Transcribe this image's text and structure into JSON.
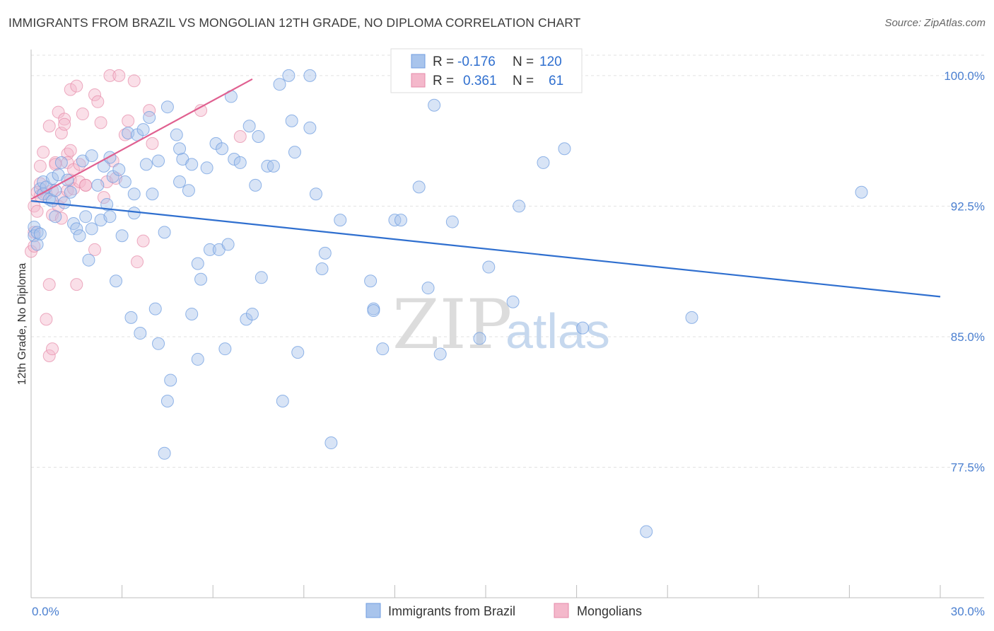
{
  "header": {
    "title": "IMMIGRANTS FROM BRAZIL VS MONGOLIAN 12TH GRADE, NO DIPLOMA CORRELATION CHART",
    "source": "Source: ZipAtlas.com"
  },
  "watermark": {
    "zip": "ZIP",
    "atlas": "atlas"
  },
  "legend_top": {
    "rows": [
      {
        "r_label": "R =",
        "r_value": "-0.176",
        "n_label": "N =",
        "n_value": "120",
        "color": "#a8c4ec"
      },
      {
        "r_label": "R =",
        "r_value": "0.361",
        "n_label": "N =",
        "n_value": "61",
        "color": "#f4b8cb"
      }
    ]
  },
  "legend_bottom": {
    "items": [
      {
        "label": "Immigrants from Brazil",
        "color": "#a8c4ec"
      },
      {
        "label": "Mongolians",
        "color": "#f4b8cb"
      }
    ]
  },
  "chart_data": {
    "type": "scatter",
    "title": "IMMIGRANTS FROM BRAZIL VS MONGOLIAN 12TH GRADE, NO DIPLOMA CORRELATION CHART",
    "xlabel": "",
    "ylabel": "12th Grade, No Diploma",
    "xlim": [
      0,
      30
    ],
    "ylim": [
      70,
      101.5
    ],
    "x_tick_labels": [
      "0.0%",
      "30.0%"
    ],
    "y_tick_labels": [
      "100.0%",
      "92.5%",
      "85.0%",
      "77.5%"
    ],
    "y_ticks": [
      100,
      92.5,
      85,
      77.5
    ],
    "grid": true,
    "legend_position": "top-center",
    "colors": {
      "brazil": "#6f9de0",
      "brazil_fill": "#a8c4ec",
      "mongolians": "#e58aa8",
      "mongolians_fill": "#f4b8cb",
      "brazil_line": "#2f6fcf",
      "mongolians_line": "#e06090"
    },
    "series": [
      {
        "name": "Immigrants from Brazil",
        "trend": {
          "x": [
            0,
            30
          ],
          "y": [
            92.8,
            87.3
          ]
        },
        "points": [
          [
            0.1,
            91.3
          ],
          [
            0.1,
            90.8
          ],
          [
            0.2,
            90.3
          ],
          [
            0.3,
            93.5
          ],
          [
            0.4,
            93.9
          ],
          [
            0.4,
            93.2
          ],
          [
            0.5,
            93.6
          ],
          [
            0.6,
            92.9
          ],
          [
            0.7,
            92.8
          ],
          [
            0.7,
            94.1
          ],
          [
            0.8,
            91.9
          ],
          [
            0.8,
            93.4
          ],
          [
            0.9,
            94.3
          ],
          [
            1.0,
            95.0
          ],
          [
            1.1,
            92.7
          ],
          [
            1.2,
            94.0
          ],
          [
            1.3,
            93.3
          ],
          [
            1.4,
            91.5
          ],
          [
            1.5,
            91.2
          ],
          [
            1.6,
            90.8
          ],
          [
            1.7,
            95.1
          ],
          [
            1.8,
            91.9
          ],
          [
            1.9,
            89.4
          ],
          [
            2.0,
            91.2
          ],
          [
            2.0,
            95.4
          ],
          [
            2.2,
            93.7
          ],
          [
            2.3,
            91.7
          ],
          [
            2.4,
            94.8
          ],
          [
            2.5,
            92.6
          ],
          [
            2.6,
            91.9
          ],
          [
            2.6,
            95.3
          ],
          [
            2.7,
            94.2
          ],
          [
            2.8,
            88.2
          ],
          [
            2.9,
            94.6
          ],
          [
            3.0,
            90.8
          ],
          [
            3.1,
            93.9
          ],
          [
            3.2,
            96.7
          ],
          [
            3.3,
            86.1
          ],
          [
            3.4,
            92.1
          ],
          [
            3.4,
            93.2
          ],
          [
            3.5,
            96.6
          ],
          [
            3.6,
            85.2
          ],
          [
            3.7,
            96.9
          ],
          [
            3.8,
            94.9
          ],
          [
            3.9,
            97.6
          ],
          [
            4.0,
            93.2
          ],
          [
            4.1,
            86.6
          ],
          [
            4.2,
            95.1
          ],
          [
            4.2,
            84.6
          ],
          [
            4.4,
            91.0
          ],
          [
            4.5,
            98.2
          ],
          [
            4.6,
            82.5
          ],
          [
            4.5,
            81.3
          ],
          [
            4.4,
            78.3
          ],
          [
            4.8,
            96.6
          ],
          [
            4.9,
            95.8
          ],
          [
            4.9,
            93.9
          ],
          [
            5.0,
            95.2
          ],
          [
            5.2,
            93.4
          ],
          [
            5.3,
            94.9
          ],
          [
            5.3,
            86.3
          ],
          [
            5.5,
            89.2
          ],
          [
            5.5,
            83.7
          ],
          [
            5.6,
            88.3
          ],
          [
            5.8,
            94.7
          ],
          [
            5.9,
            90.0
          ],
          [
            6.1,
            96.1
          ],
          [
            6.3,
            95.8
          ],
          [
            6.2,
            90.0
          ],
          [
            6.4,
            84.3
          ],
          [
            6.5,
            90.3
          ],
          [
            6.6,
            98.8
          ],
          [
            6.7,
            95.2
          ],
          [
            6.9,
            95.0
          ],
          [
            7.1,
            86.0
          ],
          [
            7.2,
            97.1
          ],
          [
            7.3,
            86.3
          ],
          [
            7.4,
            93.7
          ],
          [
            7.5,
            96.5
          ],
          [
            7.6,
            88.4
          ],
          [
            7.8,
            94.8
          ],
          [
            8.0,
            94.8
          ],
          [
            8.2,
            99.5
          ],
          [
            8.3,
            81.3
          ],
          [
            8.5,
            100.0
          ],
          [
            8.6,
            97.4
          ],
          [
            8.7,
            95.6
          ],
          [
            8.8,
            84.1
          ],
          [
            9.2,
            97.0
          ],
          [
            9.2,
            100.0
          ],
          [
            9.4,
            93.2
          ],
          [
            9.6,
            88.9
          ],
          [
            9.7,
            89.8
          ],
          [
            9.9,
            78.9
          ],
          [
            10.2,
            91.7
          ],
          [
            11.2,
            88.2
          ],
          [
            11.3,
            86.6
          ],
          [
            11.3,
            86.5
          ],
          [
            11.6,
            84.3
          ],
          [
            12.0,
            91.7
          ],
          [
            12.2,
            91.7
          ],
          [
            12.8,
            93.6
          ],
          [
            13.1,
            87.8
          ],
          [
            13.3,
            98.3
          ],
          [
            13.4,
            100.0
          ],
          [
            13.5,
            84.0
          ],
          [
            13.9,
            91.6
          ],
          [
            14.8,
            84.9
          ],
          [
            15.1,
            89.0
          ],
          [
            15.9,
            87.0
          ],
          [
            16.1,
            92.5
          ],
          [
            16.9,
            95.0
          ],
          [
            17.6,
            95.8
          ],
          [
            17.9,
            100.0
          ],
          [
            18.2,
            85.5
          ],
          [
            20.3,
            73.8
          ],
          [
            21.8,
            86.1
          ],
          [
            27.4,
            93.3
          ],
          [
            0.2,
            91.0
          ],
          [
            0.3,
            90.9
          ]
        ]
      },
      {
        "name": "Mongolians",
        "trend": {
          "x": [
            0,
            7.3
          ],
          "y": [
            92.9,
            99.8
          ]
        },
        "points": [
          [
            0.0,
            89.9
          ],
          [
            0.1,
            92.5
          ],
          [
            0.1,
            90.2
          ],
          [
            0.2,
            92.2
          ],
          [
            0.2,
            93.3
          ],
          [
            0.3,
            94.8
          ],
          [
            0.3,
            93.8
          ],
          [
            0.4,
            95.6
          ],
          [
            0.5,
            86.0
          ],
          [
            0.5,
            93.2
          ],
          [
            0.6,
            97.1
          ],
          [
            0.6,
            88.0
          ],
          [
            0.6,
            83.9
          ],
          [
            0.7,
            84.3
          ],
          [
            0.7,
            93.4
          ],
          [
            0.7,
            92.0
          ],
          [
            0.8,
            95.0
          ],
          [
            0.8,
            94.9
          ],
          [
            0.9,
            97.9
          ],
          [
            0.9,
            92.5
          ],
          [
            1.0,
            96.7
          ],
          [
            1.0,
            93.0
          ],
          [
            1.0,
            91.8
          ],
          [
            1.1,
            97.5
          ],
          [
            1.1,
            97.2
          ],
          [
            1.2,
            95.5
          ],
          [
            1.2,
            95.0
          ],
          [
            1.2,
            93.4
          ],
          [
            1.3,
            99.2
          ],
          [
            1.3,
            94.0
          ],
          [
            1.3,
            95.7
          ],
          [
            1.4,
            93.5
          ],
          [
            1.4,
            94.6
          ],
          [
            1.5,
            99.4
          ],
          [
            1.5,
            88.0
          ],
          [
            1.6,
            94.9
          ],
          [
            1.6,
            93.9
          ],
          [
            1.7,
            97.8
          ],
          [
            1.8,
            93.7
          ],
          [
            1.8,
            93.7
          ],
          [
            2.1,
            98.9
          ],
          [
            2.1,
            90.0
          ],
          [
            2.2,
            98.5
          ],
          [
            2.3,
            97.3
          ],
          [
            2.4,
            93.0
          ],
          [
            2.5,
            93.9
          ],
          [
            2.6,
            100.0
          ],
          [
            2.7,
            95.1
          ],
          [
            2.8,
            94.1
          ],
          [
            2.9,
            100.0
          ],
          [
            3.1,
            96.6
          ],
          [
            3.2,
            97.4
          ],
          [
            3.4,
            99.7
          ],
          [
            3.5,
            89.3
          ],
          [
            3.7,
            90.5
          ],
          [
            3.9,
            98.0
          ],
          [
            4.0,
            96.1
          ],
          [
            5.6,
            98.0
          ],
          [
            6.9,
            96.5
          ],
          [
            0.3,
            93.1
          ],
          [
            0.1,
            91.0
          ]
        ]
      }
    ]
  }
}
